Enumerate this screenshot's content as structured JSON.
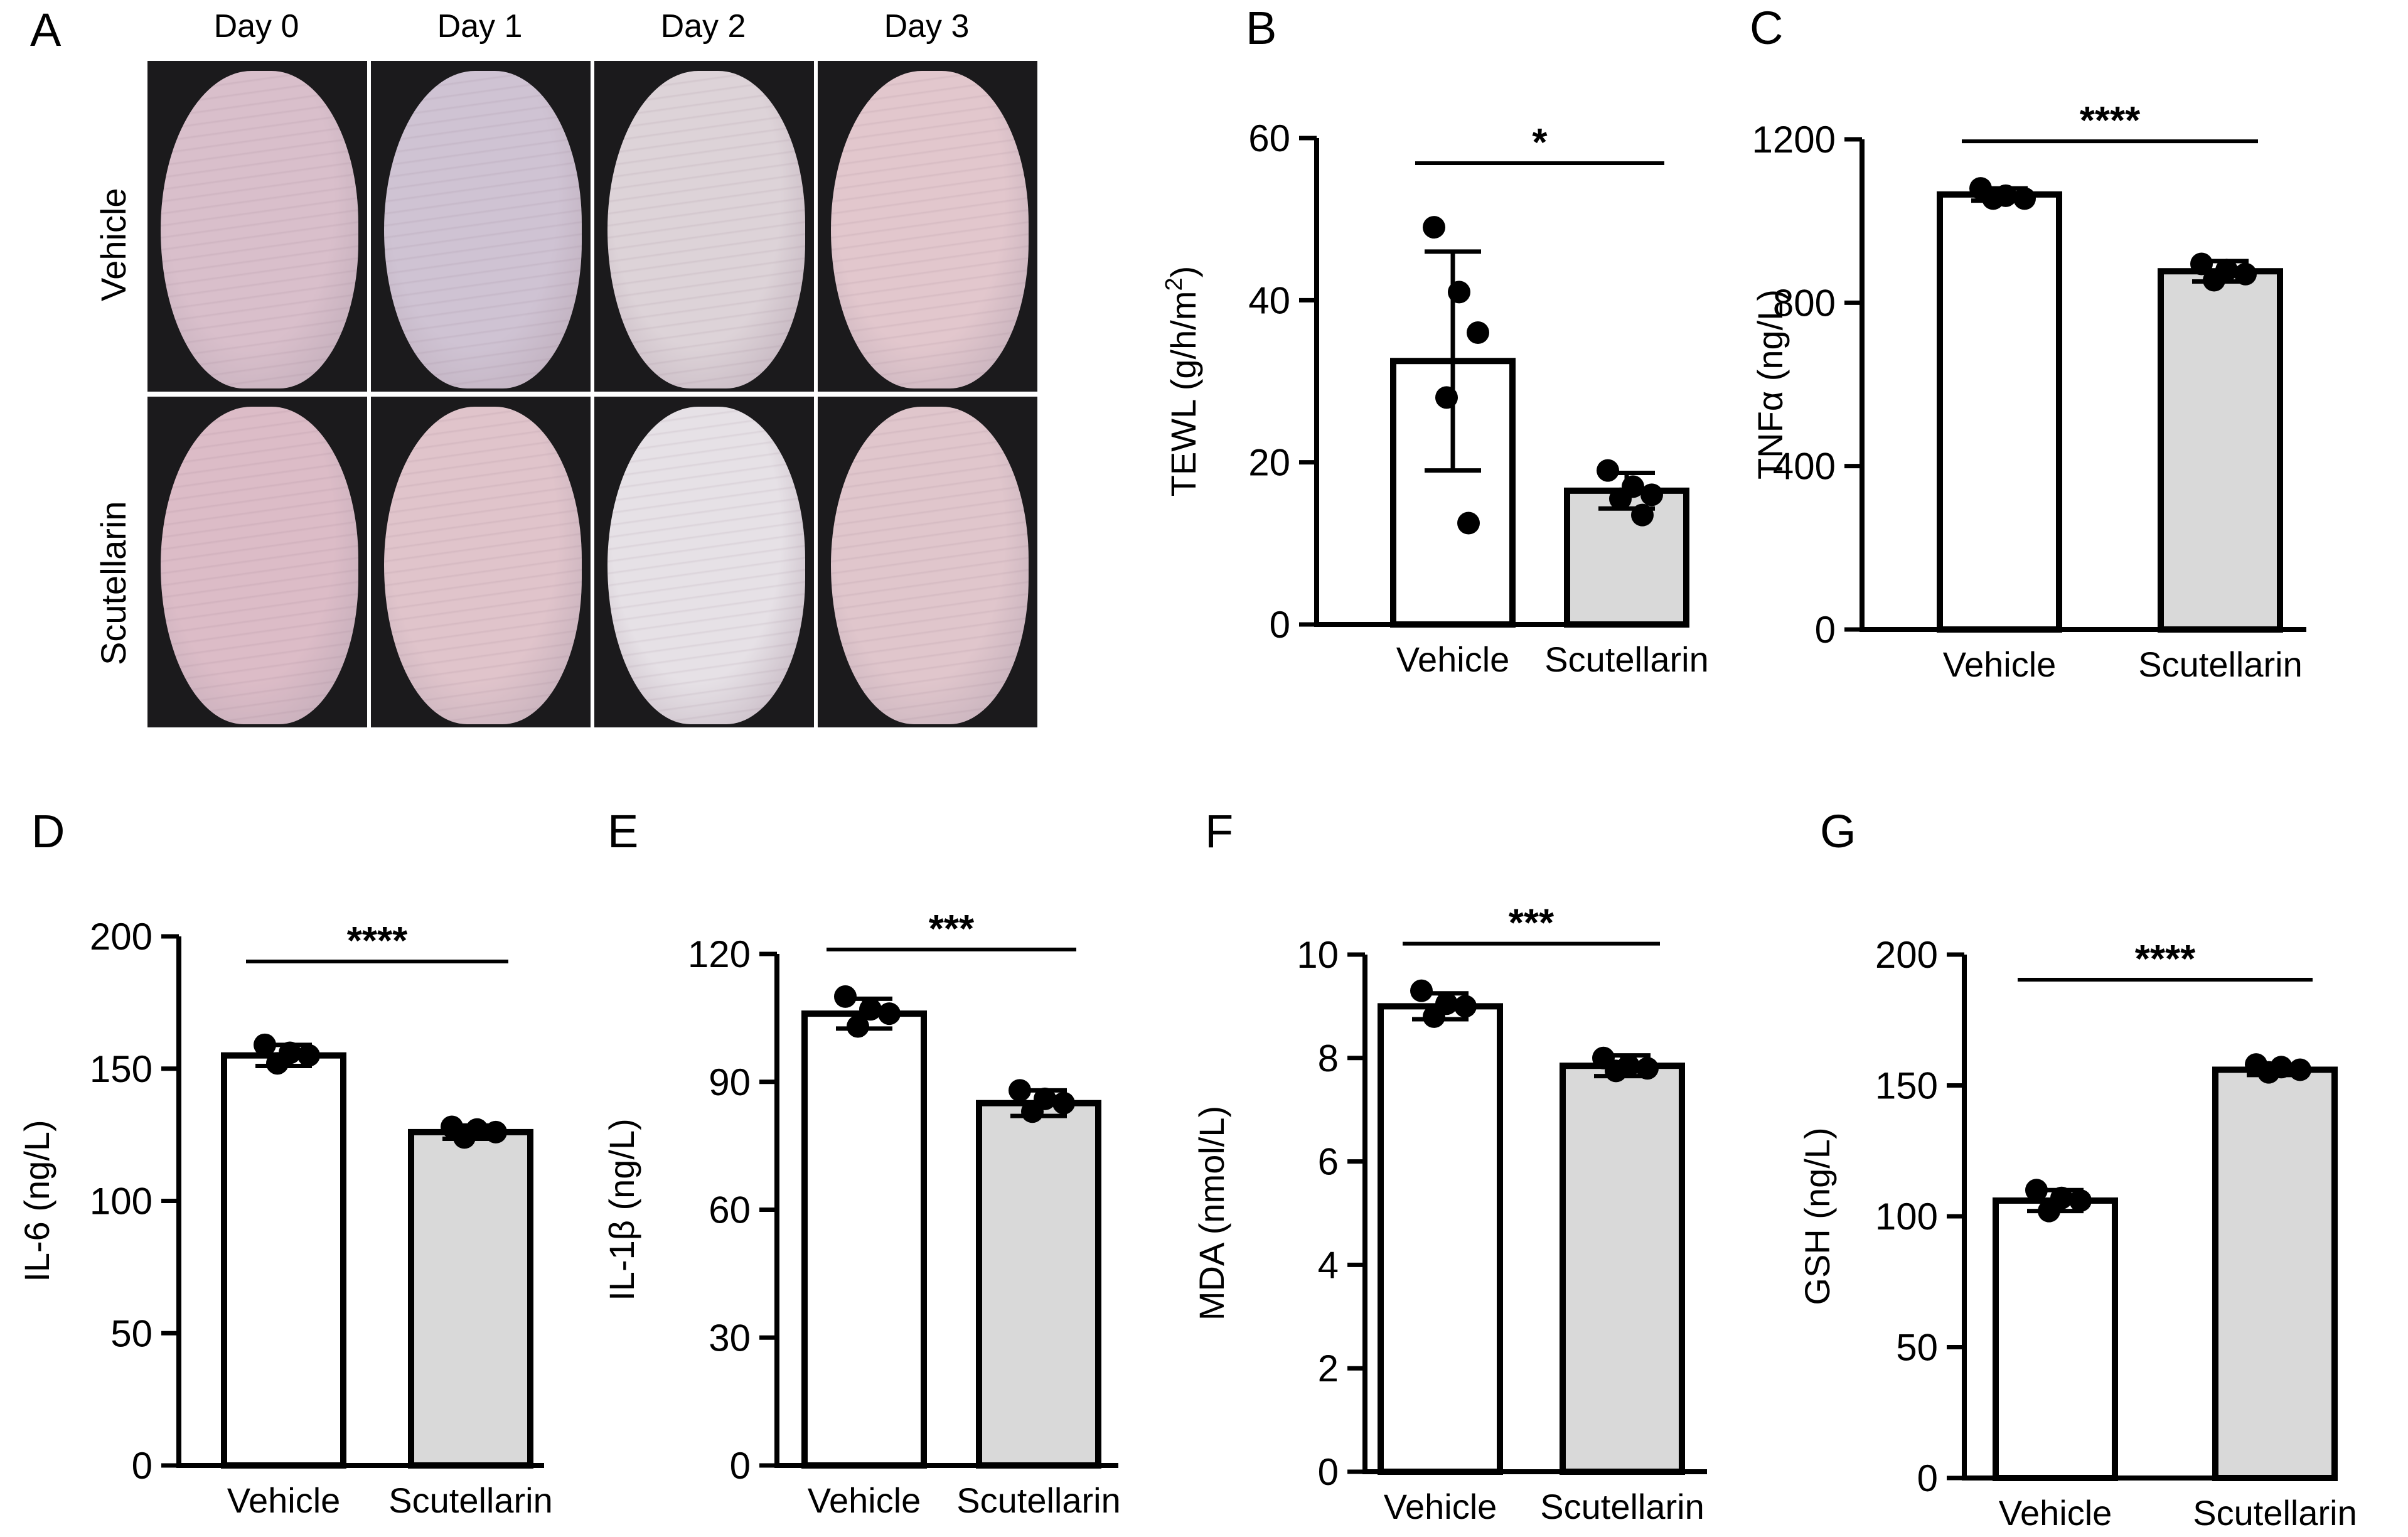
{
  "panel_a": {
    "letter": "A",
    "columns": [
      "Day 0",
      "Day 1",
      "Day 2",
      "Day 3"
    ],
    "rows": [
      "Vehicle",
      "Scutellarin"
    ],
    "photo_tints": [
      [
        "#d9bfcb",
        "#cfc3d3",
        "#ddd3d8",
        "#e2c7cd"
      ],
      [
        "#dcbcc7",
        "#e0c4cb",
        "#e6e1e6",
        "#e0c6cc"
      ]
    ]
  },
  "colors": {
    "vehicle_fill": "#ffffff",
    "scutellarin_fill": "#d9d9d9",
    "ink": "#000000"
  },
  "chart_data": [
    {
      "id": "B",
      "letter": "B",
      "type": "bar",
      "ylabel": "TEWL (g/h/m²)",
      "ylabel_main": "TEWL (g/h/m",
      "ylabel_sup": "2",
      "ylabel_end": ")",
      "categories": [
        "Vehicle",
        "Scutellarin"
      ],
      "ylim": [
        0,
        60
      ],
      "yticks": [
        0,
        20,
        40,
        60
      ],
      "ytick_labels": [
        "0",
        "20",
        "40",
        "60"
      ],
      "values": [
        32.5,
        16.5
      ],
      "errors": [
        13.5,
        2.2
      ],
      "points": [
        [
          49,
          41,
          36,
          28,
          12.5
        ],
        [
          19,
          17,
          16,
          15.5,
          13.5
        ]
      ],
      "significance": "*"
    },
    {
      "id": "C",
      "letter": "C",
      "type": "bar",
      "ylabel": "TNFα (ng/L)",
      "categories": [
        "Vehicle",
        "Scutellarin"
      ],
      "ylim": [
        0,
        1200
      ],
      "yticks": [
        0,
        400,
        800,
        1200
      ],
      "ytick_labels": [
        "0",
        "400",
        "800",
        "1200"
      ],
      "values": [
        1065,
        877
      ],
      "errors": [
        15,
        25
      ],
      "points": [
        [
          1080,
          1062,
          1055,
          1055
        ],
        [
          895,
          880,
          870,
          855
        ]
      ],
      "significance": "****"
    },
    {
      "id": "D",
      "letter": "D",
      "type": "bar",
      "ylabel": "IL-6 (ng/L)",
      "categories": [
        "Vehicle",
        "Scutellarin"
      ],
      "ylim": [
        0,
        200
      ],
      "yticks": [
        0,
        50,
        100,
        150,
        200
      ],
      "ytick_labels": [
        "0",
        "50",
        "100",
        "150",
        "200"
      ],
      "values": [
        155,
        126
      ],
      "errors": [
        4,
        2.5
      ],
      "points": [
        [
          159,
          156,
          155,
          152
        ],
        [
          128,
          127,
          126,
          124
        ]
      ],
      "significance": "****"
    },
    {
      "id": "E",
      "letter": "E",
      "type": "bar",
      "ylabel": "IL-1β (ng/L)",
      "categories": [
        "Vehicle",
        "Scutellarin"
      ],
      "ylim": [
        0,
        120
      ],
      "yticks": [
        0,
        30,
        60,
        90,
        120
      ],
      "ytick_labels": [
        "0",
        "30",
        "60",
        "90",
        "120"
      ],
      "values": [
        106,
        85
      ],
      "errors": [
        3.5,
        3
      ],
      "points": [
        [
          110,
          107,
          106,
          103
        ],
        [
          88,
          86,
          85,
          83
        ]
      ],
      "significance": "***"
    },
    {
      "id": "F",
      "letter": "F",
      "type": "bar",
      "ylabel": "MDA (nmol/L)",
      "categories": [
        "Vehicle",
        "Scutellarin"
      ],
      "ylim": [
        0,
        10
      ],
      "yticks": [
        0,
        2,
        4,
        6,
        8,
        10
      ],
      "ytick_labels": [
        "0",
        "2",
        "4",
        "6",
        "8",
        "10"
      ],
      "values": [
        9.0,
        7.85
      ],
      "errors": [
        0.25,
        0.2
      ],
      "points": [
        [
          9.3,
          9.05,
          9.0,
          8.8
        ],
        [
          8.0,
          7.85,
          7.8,
          7.75
        ]
      ],
      "significance": "***"
    },
    {
      "id": "G",
      "letter": "G",
      "type": "bar",
      "ylabel": "GSH (ng/L)",
      "categories": [
        "Vehicle",
        "Scutellarin"
      ],
      "ylim": [
        0,
        200
      ],
      "yticks": [
        0,
        50,
        100,
        150,
        200
      ],
      "ytick_labels": [
        "0",
        "50",
        "100",
        "150",
        "200"
      ],
      "values": [
        106,
        156
      ],
      "errors": [
        4,
        2
      ],
      "points": [
        [
          110,
          107,
          106,
          102
        ],
        [
          158,
          157,
          156,
          155
        ]
      ],
      "significance": "****"
    }
  ]
}
